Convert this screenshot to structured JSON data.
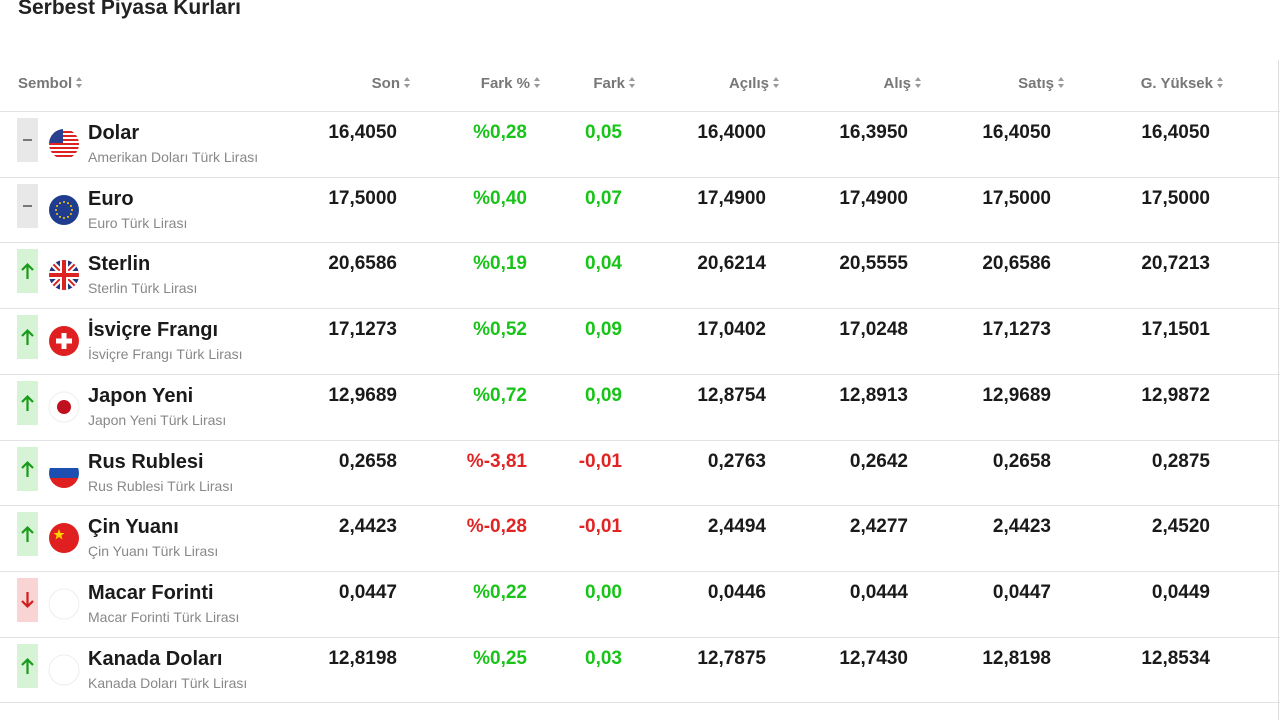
{
  "header": {
    "title": "Serbest Piyasa Kurları"
  },
  "table": {
    "columns": [
      "Sembol",
      "Son",
      "Fark %",
      "Fark",
      "Açılış",
      "Alış",
      "Satış",
      "G. Yüksek"
    ],
    "rows": [
      {
        "name": "Dolar",
        "subtitle": "Amerikan Doları Türk Lirası",
        "trend": "flat",
        "values": [
          "16,4050",
          "%0,28",
          "0,05",
          "16,4000",
          "16,3950",
          "16,4050",
          "16,4050"
        ]
      },
      {
        "name": "Euro",
        "subtitle": "Euro Türk Lirası",
        "trend": "flat",
        "values": [
          "17,5000",
          "%0,40",
          "0,07",
          "17,4900",
          "17,4900",
          "17,5000",
          "17,5000"
        ]
      },
      {
        "name": "Sterlin",
        "subtitle": "Sterlin Türk Lirası",
        "trend": "up",
        "values": [
          "20,6586",
          "%0,19",
          "0,04",
          "20,6214",
          "20,5555",
          "20,6586",
          "20,7213"
        ]
      },
      {
        "name": "İsviçre Frangı",
        "subtitle": "İsviçre Frangı Türk Lirası",
        "trend": "up",
        "values": [
          "17,1273",
          "%0,52",
          "0,09",
          "17,0402",
          "17,0248",
          "17,1273",
          "17,1501"
        ]
      },
      {
        "name": "Japon Yeni",
        "subtitle": "Japon Yeni Türk Lirası",
        "trend": "up",
        "values": [
          "12,9689",
          "%0,72",
          "0,09",
          "12,8754",
          "12,8913",
          "12,9689",
          "12,9872"
        ]
      },
      {
        "name": "Rus Rublesi",
        "subtitle": "Rus Rublesi Türk Lirası",
        "trend": "up",
        "values": [
          "0,2658",
          "%-3,81",
          "-0,01",
          "0,2763",
          "0,2642",
          "0,2658",
          "0,2875"
        ]
      },
      {
        "name": "Çin Yuanı",
        "subtitle": "Çin Yuanı Türk Lirası",
        "trend": "up",
        "values": [
          "2,4423",
          "%-0,28",
          "-0,01",
          "2,4494",
          "2,4277",
          "2,4423",
          "2,4520"
        ]
      },
      {
        "name": "Macar Forinti",
        "subtitle": "Macar Forinti Türk Lirası",
        "trend": "down",
        "values": [
          "0,0447",
          "%0,22",
          "0,00",
          "0,0446",
          "0,0444",
          "0,0447",
          "0,0449"
        ]
      },
      {
        "name": "Kanada Doları",
        "subtitle": "Kanada Doları Türk Lirası",
        "trend": "up",
        "values": [
          "12,8198",
          "%0,25",
          "0,03",
          "12,7875",
          "12,7430",
          "12,8198",
          "12,8534"
        ]
      }
    ]
  }
}
